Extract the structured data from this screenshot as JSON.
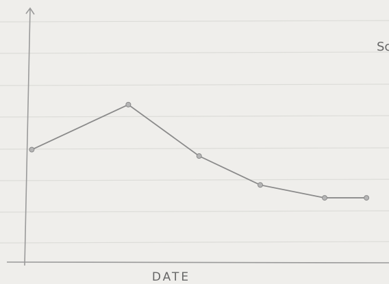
{
  "chart_data": {
    "type": "line",
    "x_label": "DATE",
    "side_text": "Sc",
    "x": [
      0.2,
      3.2,
      5.4,
      7.3,
      9.3,
      10.6
    ],
    "series": [
      {
        "color": "#8a8a8a",
        "values": [
          3.5,
          4.9,
          3.3,
          2.4,
          2.0,
          2.0
        ]
      }
    ],
    "xlim": [
      0,
      11.3
    ],
    "ylim": [
      0,
      7.9
    ]
  }
}
